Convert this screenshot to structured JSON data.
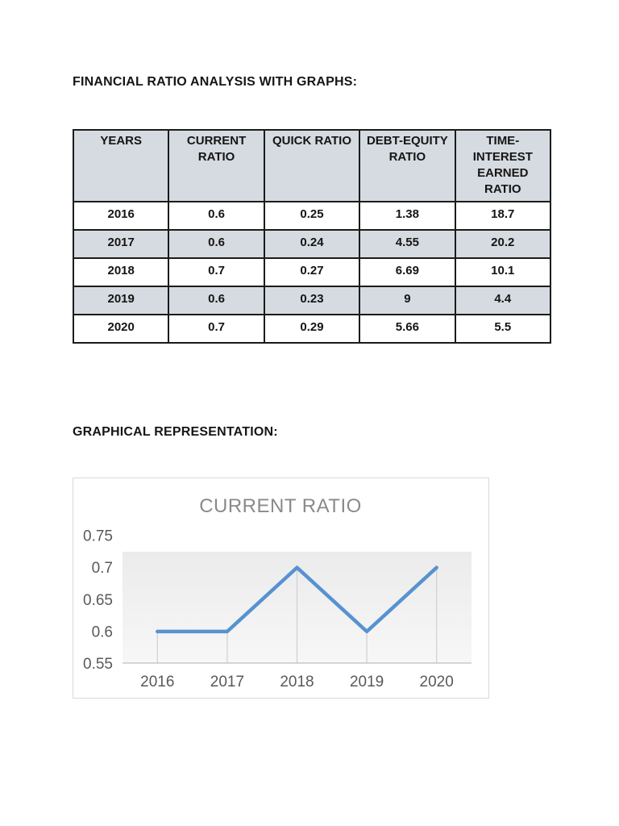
{
  "document": {
    "heading1": "FINANCIAL RATIO ANALYSIS WITH GRAPHS:",
    "heading2": "GRAPHICAL REPRESENTATION:"
  },
  "table": {
    "headers": [
      "YEARS",
      "CURRENT RATIO",
      "QUICK RATIO",
      "DEBT-EQUITY RATIO",
      "TIME-INTEREST EARNED RATIO"
    ],
    "rows": [
      [
        "2016",
        "0.6",
        "0.25",
        "1.38",
        "18.7"
      ],
      [
        "2017",
        "0.6",
        "0.24",
        "4.55",
        "20.2"
      ],
      [
        "2018",
        "0.7",
        "0.27",
        "6.69",
        "10.1"
      ],
      [
        "2019",
        "0.6",
        "0.23",
        "9",
        "4.4"
      ],
      [
        "2020",
        "0.7",
        "0.29",
        "5.66",
        "5.5"
      ]
    ],
    "header_bg": "#d6dbe1",
    "shaded_row_bg": "#d6dbe1"
  },
  "chart_data": {
    "type": "line",
    "title": "CURRENT RATIO",
    "categories": [
      "2016",
      "2017",
      "2018",
      "2019",
      "2020"
    ],
    "series": [
      {
        "name": "CURRENT RATIO",
        "values": [
          0.6,
          0.6,
          0.7,
          0.6,
          0.7
        ]
      }
    ],
    "xlabel": "",
    "ylabel": "",
    "ylim": [
      0.55,
      0.75
    ],
    "yticks": [
      0.55,
      0.6,
      0.65,
      0.7,
      0.75
    ],
    "legend": "none",
    "grid": "vertical-drop-lines",
    "line_color": "#5792d0",
    "drop_line_color": "#d0d0d0",
    "axis_line_color": "#bfbfbf",
    "axis_label_color": "#595959",
    "title_color": "#8a8a8a"
  }
}
